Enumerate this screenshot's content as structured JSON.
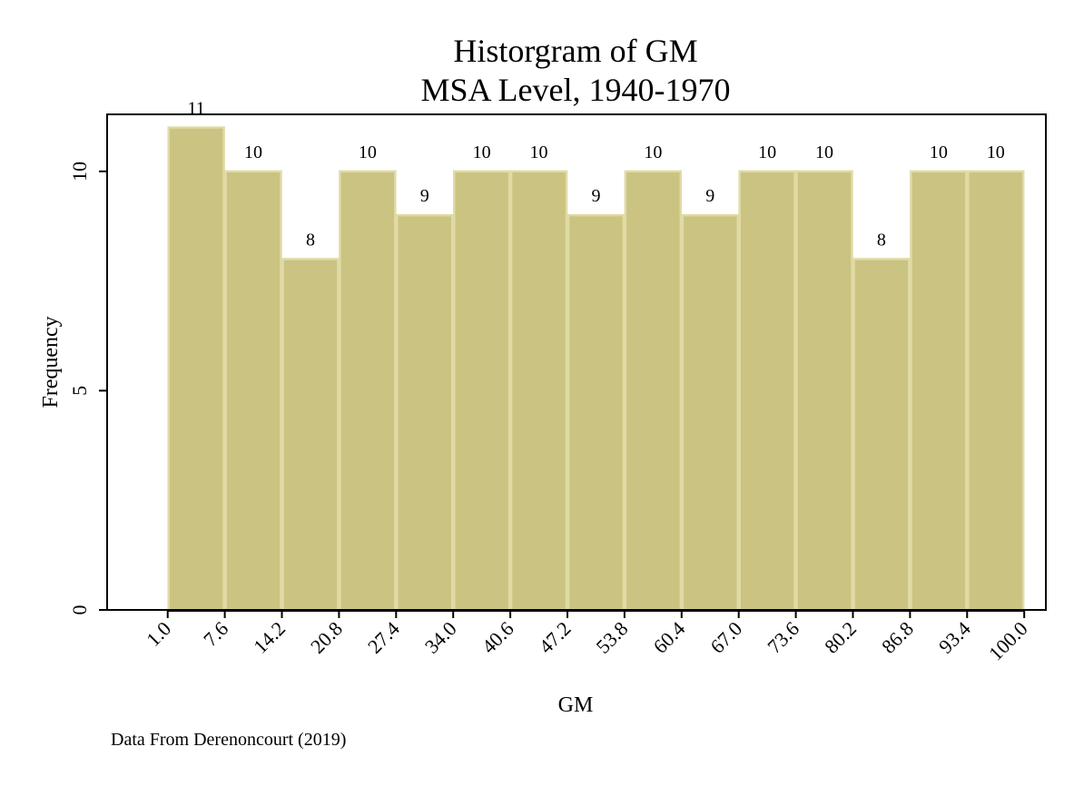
{
  "chart_data": {
    "type": "histogram",
    "title": "Historgram of GM",
    "subtitle": "MSA Level, 1940-1970",
    "xlabel": "GM",
    "ylabel": "Frequency",
    "note": "Data From Derenoncourt (2019)",
    "bin_edges": [
      1.0,
      7.6,
      14.2,
      20.8,
      27.4,
      34.0,
      40.6,
      47.2,
      53.8,
      60.4,
      67.0,
      73.6,
      80.2,
      86.8,
      93.4,
      100.0
    ],
    "x_tick_labels": [
      "1.0",
      "7.6",
      "14.2",
      "20.8",
      "27.4",
      "34.0",
      "40.6",
      "47.2",
      "53.8",
      "60.4",
      "67.0",
      "73.6",
      "80.2",
      "86.8",
      "93.4",
      "100.0"
    ],
    "values": [
      11,
      10,
      8,
      10,
      9,
      10,
      10,
      9,
      10,
      9,
      10,
      10,
      8,
      10,
      10
    ],
    "bar_labels": [
      "11",
      "10",
      "8",
      "10",
      "9",
      "10",
      "10",
      "9",
      "10",
      "9",
      "10",
      "10",
      "8",
      "10",
      "10"
    ],
    "y_ticks": [
      0,
      5,
      10
    ],
    "y_tick_labels": [
      "0",
      "5",
      "10"
    ],
    "xlim": [
      -6.0,
      102.5
    ],
    "ylim": [
      0,
      11.3
    ],
    "bar_color": "#cbc382",
    "bar_edge_color": "#e0dba5",
    "grid": false
  }
}
